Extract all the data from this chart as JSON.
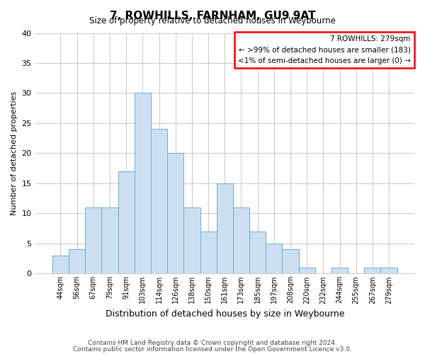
{
  "title": "7, ROWHILLS, FARNHAM, GU9 9AT",
  "subtitle": "Size of property relative to detached houses in Weybourne",
  "xlabel": "Distribution of detached houses by size in Weybourne",
  "ylabel": "Number of detached properties",
  "bar_color": "#ccdff0",
  "bar_edge_color": "#6aaed6",
  "bin_labels": [
    "44sqm",
    "56sqm",
    "67sqm",
    "79sqm",
    "91sqm",
    "103sqm",
    "114sqm",
    "126sqm",
    "138sqm",
    "150sqm",
    "161sqm",
    "173sqm",
    "185sqm",
    "197sqm",
    "208sqm",
    "220sqm",
    "232sqm",
    "244sqm",
    "255sqm",
    "267sqm",
    "279sqm"
  ],
  "bar_heights": [
    3,
    4,
    11,
    11,
    17,
    30,
    24,
    20,
    11,
    7,
    15,
    11,
    7,
    5,
    4,
    1,
    0,
    1,
    0,
    1,
    1
  ],
  "ylim": [
    0,
    40
  ],
  "yticks": [
    0,
    5,
    10,
    15,
    20,
    25,
    30,
    35,
    40
  ],
  "legend_title": "7 ROWHILLS: 279sqm",
  "legend_line1": "← >99% of detached houses are smaller (183)",
  "legend_line2": "<1% of semi-detached houses are larger (0) →",
  "footer_line1": "Contains HM Land Registry data © Crown copyright and database right 2024.",
  "footer_line2": "Contains public sector information licensed under the Open Government Licence v3.0.",
  "background_color": "#ffffff",
  "grid_color": "#cccccc"
}
